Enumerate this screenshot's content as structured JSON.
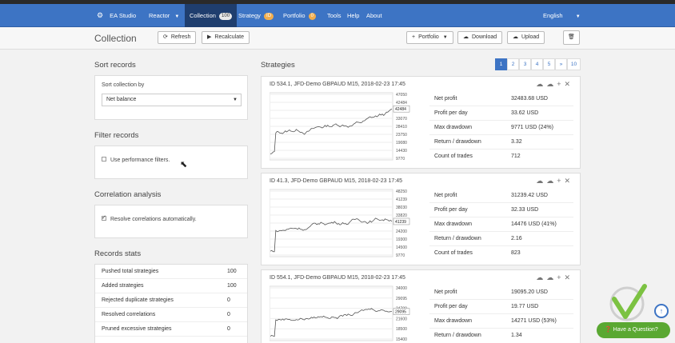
{
  "nav": {
    "brand": "EA Studio",
    "items": [
      {
        "label": "Reactor"
      },
      {
        "label": "Collection",
        "badge": "100"
      },
      {
        "label": "Strategy",
        "badge": "ID"
      },
      {
        "label": "Portfolio",
        "badge": "0"
      },
      {
        "label": "Tools"
      },
      {
        "label": "Help"
      },
      {
        "label": "About"
      }
    ],
    "language": "English"
  },
  "toolbar": {
    "title": "Collection",
    "refresh": "Refresh",
    "recalculate": "Recalculate",
    "portfolio": "Portfolio",
    "download": "Download",
    "upload": "Upload"
  },
  "sidebar": {
    "sort": {
      "title": "Sort records",
      "label": "Sort collection by",
      "value": "Net balance"
    },
    "filter": {
      "title": "Filter records",
      "checkbox": "Use performance filters."
    },
    "correlation": {
      "title": "Correlation analysis",
      "checkbox": "Resolve correlations automatically."
    },
    "stats": {
      "title": "Records stats",
      "rows": [
        {
          "label": "Pushed total strategies",
          "value": "100"
        },
        {
          "label": "Added strategies",
          "value": "100"
        },
        {
          "label": "Rejected duplicate strategies",
          "value": "0"
        },
        {
          "label": "Resolved correlations",
          "value": "0"
        },
        {
          "label": "Pruned excessive strategies",
          "value": "0"
        }
      ]
    }
  },
  "strategies": {
    "title": "Strategies",
    "pages": [
      "1",
      "2",
      "3",
      "4",
      "5",
      "»",
      "10"
    ],
    "cards": [
      {
        "title": "ID 534.1, JFD-Demo GBPAUD M15, 2018-02-23 17:45",
        "ticks": [
          "47050",
          "42484",
          "37730",
          "33070",
          "28410",
          "23750",
          "19080",
          "14430",
          "9770"
        ],
        "current": "42484",
        "metrics": [
          {
            "label": "Net profit",
            "value": "32483.68 USD"
          },
          {
            "label": "Profit per day",
            "value": "33.62 USD"
          },
          {
            "label": "Max drawdown",
            "value": "9771 USD (24%)"
          },
          {
            "label": "Return / drawdown",
            "value": "3.32"
          },
          {
            "label": "Count of trades",
            "value": "712"
          }
        ]
      },
      {
        "title": "ID 41.3, JFD-Demo GBPAUD M15, 2018-02-23 17:45",
        "ticks": [
          "48250",
          "41239",
          "38030",
          "33820",
          "29910",
          "24200",
          "19300",
          "14500",
          "9770"
        ],
        "current": "41239",
        "metrics": [
          {
            "label": "Net profit",
            "value": "31239.42 USD"
          },
          {
            "label": "Profit per day",
            "value": "32.33 USD"
          },
          {
            "label": "Max drawdown",
            "value": "14476 USD (41%)"
          },
          {
            "label": "Return / drawdown",
            "value": "2.16"
          },
          {
            "label": "Count of trades",
            "value": "823"
          }
        ]
      },
      {
        "title": "ID 554.1, JFD-Demo GBPAUD M15, 2018-02-23 17:45",
        "ticks": [
          "34000",
          "29095",
          "24700",
          "21600",
          "18500",
          "15400"
        ],
        "current": "29095",
        "metrics": [
          {
            "label": "Net profit",
            "value": "19095.20 USD"
          },
          {
            "label": "Profit per day",
            "value": "19.77 USD"
          },
          {
            "label": "Max drawdown",
            "value": "14271 USD (53%)"
          },
          {
            "label": "Return / drawdown",
            "value": "1.34"
          }
        ]
      }
    ]
  },
  "help": {
    "label": "Have a Question?"
  },
  "colors": {
    "nav": "#3d74c4",
    "help": "#5aa832",
    "chart_line": "#555555"
  }
}
